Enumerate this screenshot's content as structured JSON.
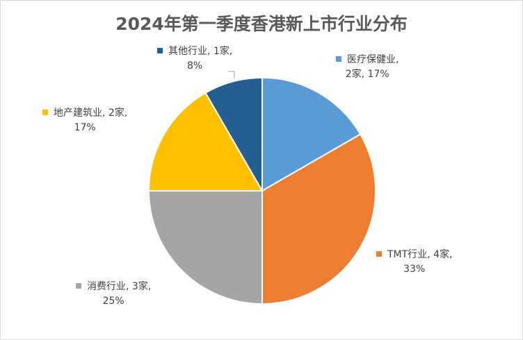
{
  "chart_data": {
    "type": "pie",
    "title": "2024年第一季度香港新上市行业分布",
    "slices": [
      {
        "name": "医疗保健业",
        "count": 2,
        "unit": "家",
        "percent": 17,
        "color": "#5b9bd5",
        "label_line1": "医疗保健业,",
        "label_line2": "2家, 17%"
      },
      {
        "name": "TMT行业",
        "count": 4,
        "unit": "家",
        "percent": 33,
        "color": "#ed7d31",
        "label_line1": "TMT行业, 4家,",
        "label_line2": "33%"
      },
      {
        "name": "消费行业",
        "count": 3,
        "unit": "家",
        "percent": 25,
        "color": "#a5a5a5",
        "label_line1": "消费行业, 3家,",
        "label_line2": "25%"
      },
      {
        "name": "地产建筑业",
        "count": 2,
        "unit": "家",
        "percent": 17,
        "color": "#ffc000",
        "label_line1": "地产建筑业, 2家,",
        "label_line2": "17%"
      },
      {
        "name": "其他行业",
        "count": 1,
        "unit": "家",
        "percent": 8,
        "color": "#255e91",
        "label_line1": "其他行业, 1家,",
        "label_line2": "8%"
      }
    ],
    "legend": "none",
    "start_angle": "top, clockwise"
  }
}
